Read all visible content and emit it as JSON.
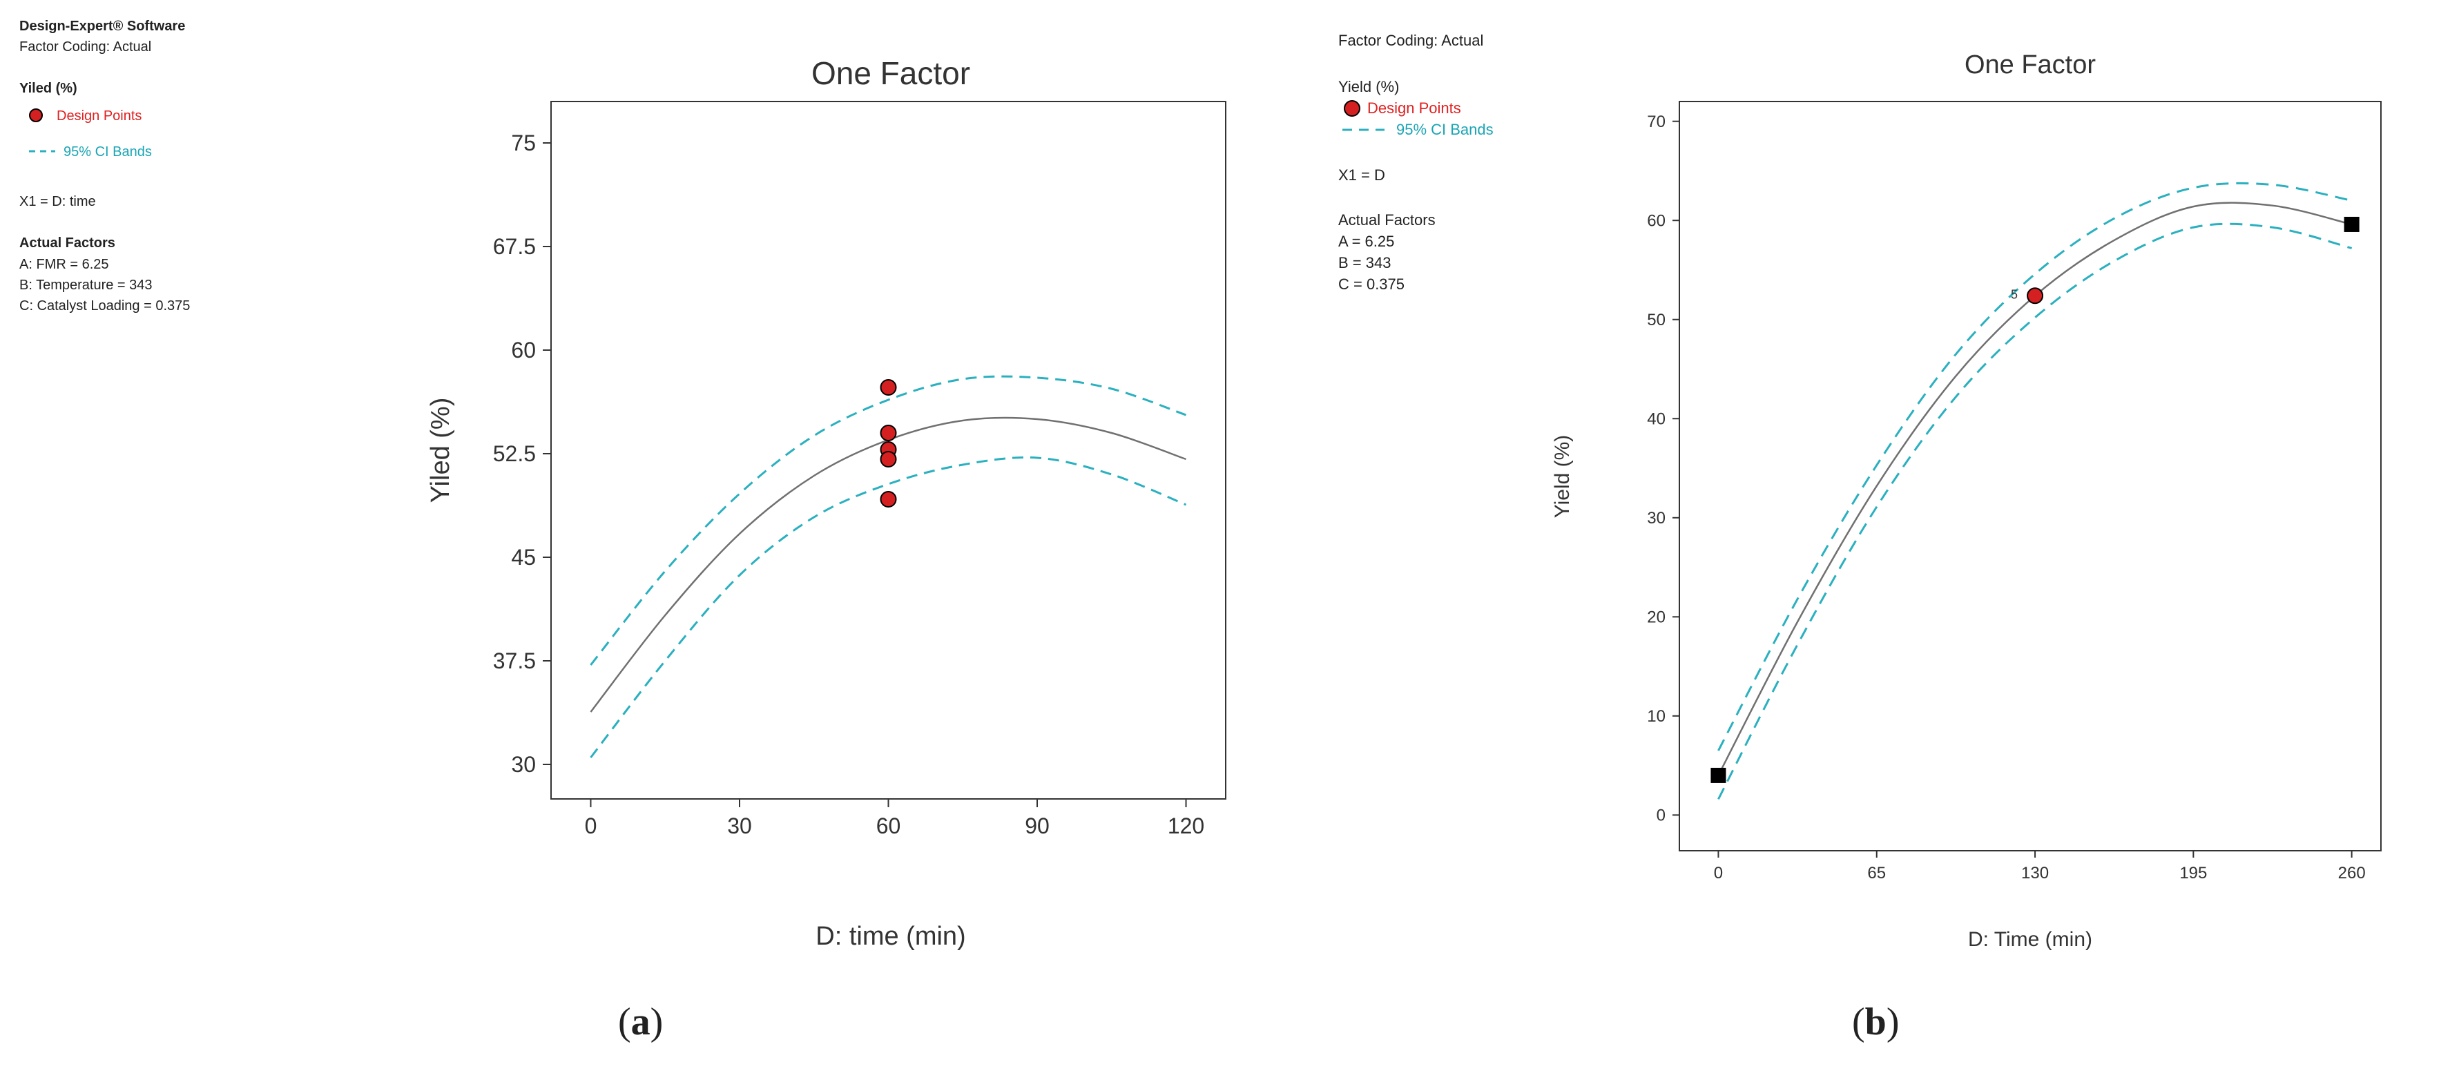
{
  "panel_a": {
    "software": "Design-Expert® Software",
    "factor_coding": "Factor Coding: Actual",
    "response": "Yiled (%)",
    "legend_points": "Design Points",
    "legend_bands": "95% CI Bands",
    "x1": "X1 = D: time",
    "actual_factors_title": "Actual Factors",
    "actual_factors": [
      "A: FMR = 6.25",
      "B: Temperature = 343",
      "C: Catalyst Loading = 0.375"
    ],
    "sublabel_open": "(",
    "sublabel_letter": "a",
    "sublabel_close": ")"
  },
  "panel_b": {
    "factor_coding": "Factor Coding: Actual",
    "response": "Yield (%)",
    "legend_points": "Design Points",
    "legend_bands": "95% CI Bands",
    "x1": "X1 = D",
    "actual_factors_title": "Actual Factors",
    "actual_factors": [
      "A = 6.25",
      "B = 343",
      "C = 0.375"
    ],
    "point_label": "5",
    "sublabel_open": "(",
    "sublabel_letter": "b",
    "sublabel_close": ")"
  },
  "colors": {
    "fit": "#707070",
    "ci": "#2ab0bf",
    "point": "#d42020",
    "marker": "#000000"
  },
  "chart_data": [
    {
      "type": "line",
      "title": "One Factor",
      "xlabel": "D: time (min)",
      "ylabel": "Yiled (%)",
      "xlim": [
        -8,
        128
      ],
      "ylim": [
        27.5,
        78
      ],
      "xticks": [
        0,
        30,
        60,
        90,
        120
      ],
      "xtick_labels": [
        "0",
        "30",
        "60",
        "90",
        "120"
      ],
      "yticks": [
        30,
        37.5,
        45,
        52.5,
        60,
        67.5,
        75
      ],
      "ytick_labels": [
        "30",
        "37.5",
        "45",
        "52.5",
        "60",
        "67.5",
        "75"
      ],
      "x": [
        0,
        15,
        30,
        45,
        60,
        75,
        90,
        105,
        120
      ],
      "series": [
        {
          "name": "Fit",
          "style": "solid",
          "values": [
            33.8,
            40.8,
            46.7,
            50.9,
            53.5,
            54.9,
            55.0,
            54.0,
            52.1
          ]
        },
        {
          "name": "95% CI Upper",
          "style": "dashed",
          "values": [
            37.2,
            44.0,
            49.6,
            53.8,
            56.4,
            57.9,
            58.0,
            57.2,
            55.3
          ]
        },
        {
          "name": "95% CI Lower",
          "style": "dashed",
          "values": [
            30.5,
            37.5,
            43.7,
            47.9,
            50.3,
            51.7,
            52.2,
            51.0,
            48.8
          ]
        }
      ],
      "points": {
        "name": "Design Points",
        "x": [
          60,
          60,
          60,
          60,
          60
        ],
        "y": [
          57.3,
          54.0,
          52.8,
          52.1,
          49.2
        ]
      }
    },
    {
      "type": "line",
      "title": "One Factor",
      "xlabel": "D: Time (min)",
      "ylabel": "Yield (%)",
      "xlim": [
        -16,
        272
      ],
      "ylim": [
        -3.6,
        72
      ],
      "xticks": [
        0,
        65,
        130,
        195,
        260
      ],
      "xtick_labels": [
        "0",
        "65",
        "130",
        "195",
        "260"
      ],
      "yticks": [
        0,
        10,
        20,
        30,
        40,
        50,
        60,
        70
      ],
      "ytick_labels": [
        "0",
        "10",
        "20",
        "30",
        "40",
        "50",
        "60",
        "70"
      ],
      "x": [
        0,
        32.5,
        65,
        97.5,
        130,
        162.5,
        195,
        227.5,
        260
      ],
      "series": [
        {
          "name": "Fit",
          "style": "solid",
          "values": [
            4.0,
            19.5,
            33.2,
            44.3,
            52.4,
            58.0,
            61.4,
            61.5,
            59.6
          ]
        },
        {
          "name": "95% CI Upper",
          "style": "dashed",
          "values": [
            6.5,
            21.8,
            35.3,
            46.5,
            54.6,
            60.2,
            63.3,
            63.6,
            62.0
          ]
        },
        {
          "name": "95% CI Lower",
          "style": "dashed",
          "values": [
            1.6,
            17.2,
            31.1,
            42.2,
            50.2,
            55.9,
            59.3,
            59.3,
            57.2
          ]
        }
      ],
      "points": {
        "name": "Design Points",
        "x": [
          130
        ],
        "y": [
          52.4
        ]
      },
      "square_markers": {
        "x": [
          0,
          260
        ],
        "y": [
          4.0,
          59.6
        ]
      }
    }
  ]
}
